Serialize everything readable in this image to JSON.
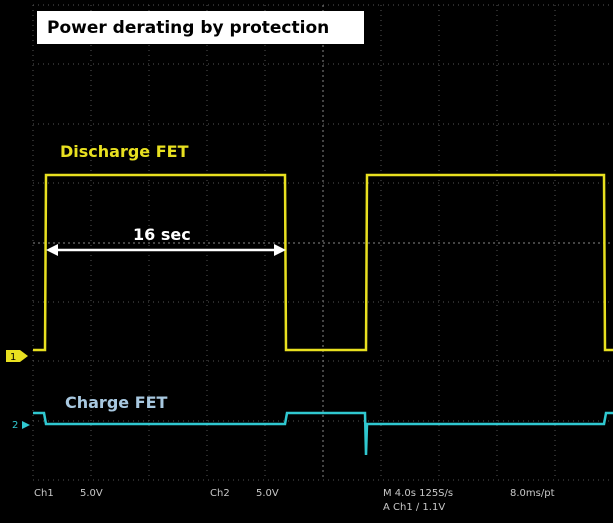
{
  "header": {
    "title": "Power derating by protection"
  },
  "traces": [
    {
      "label": "Discharge FET",
      "marker": "1"
    },
    {
      "label": "Charge FET",
      "marker": "2"
    }
  ],
  "annotation": "16 sec",
  "status": {
    "ch1": "Ch1",
    "ch1_scale": "5.0V",
    "ch2": "Ch2",
    "ch2_scale": "5.0V",
    "timebase": "M 4.0s 125S/s",
    "record": "8.0ms/pt",
    "trigger": "A Ch1 ∕ 1.1V"
  }
}
